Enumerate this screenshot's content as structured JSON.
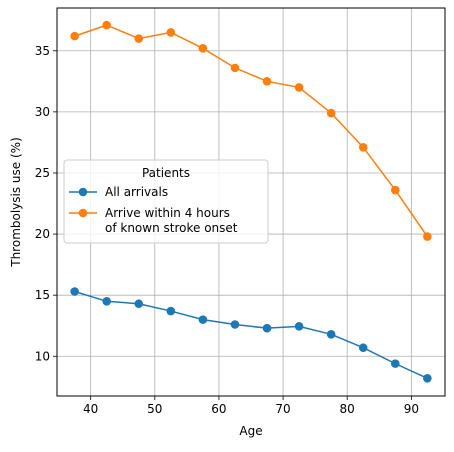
{
  "chart_data": {
    "type": "line",
    "xlabel": "Age",
    "ylabel": "Thrombolysis use (%)",
    "xlim": [
      34.75,
      95.25
    ],
    "ylim": [
      6.75,
      38.5
    ],
    "xticks": [
      40,
      50,
      60,
      70,
      80,
      90
    ],
    "yticks": [
      10,
      15,
      20,
      25,
      30,
      35
    ],
    "grid": true,
    "legend": {
      "title": "Patients",
      "placement": "center-left"
    },
    "x": [
      37.5,
      42.5,
      47.5,
      52.5,
      57.5,
      62.5,
      67.5,
      72.5,
      77.5,
      82.5,
      87.5,
      92.5
    ],
    "series": [
      {
        "name": "All arrivals",
        "color": "#1f77b4",
        "values": [
          15.3,
          14.5,
          14.3,
          13.7,
          13.0,
          12.6,
          12.3,
          12.45,
          11.8,
          10.7,
          9.4,
          8.2
        ]
      },
      {
        "name": "Arrive within 4 hours\nof known stroke onset",
        "color": "#ff7f0e",
        "values": [
          36.2,
          37.1,
          36.0,
          36.5,
          35.2,
          33.6,
          32.5,
          32.0,
          29.9,
          27.1,
          23.6,
          19.8
        ]
      }
    ]
  }
}
